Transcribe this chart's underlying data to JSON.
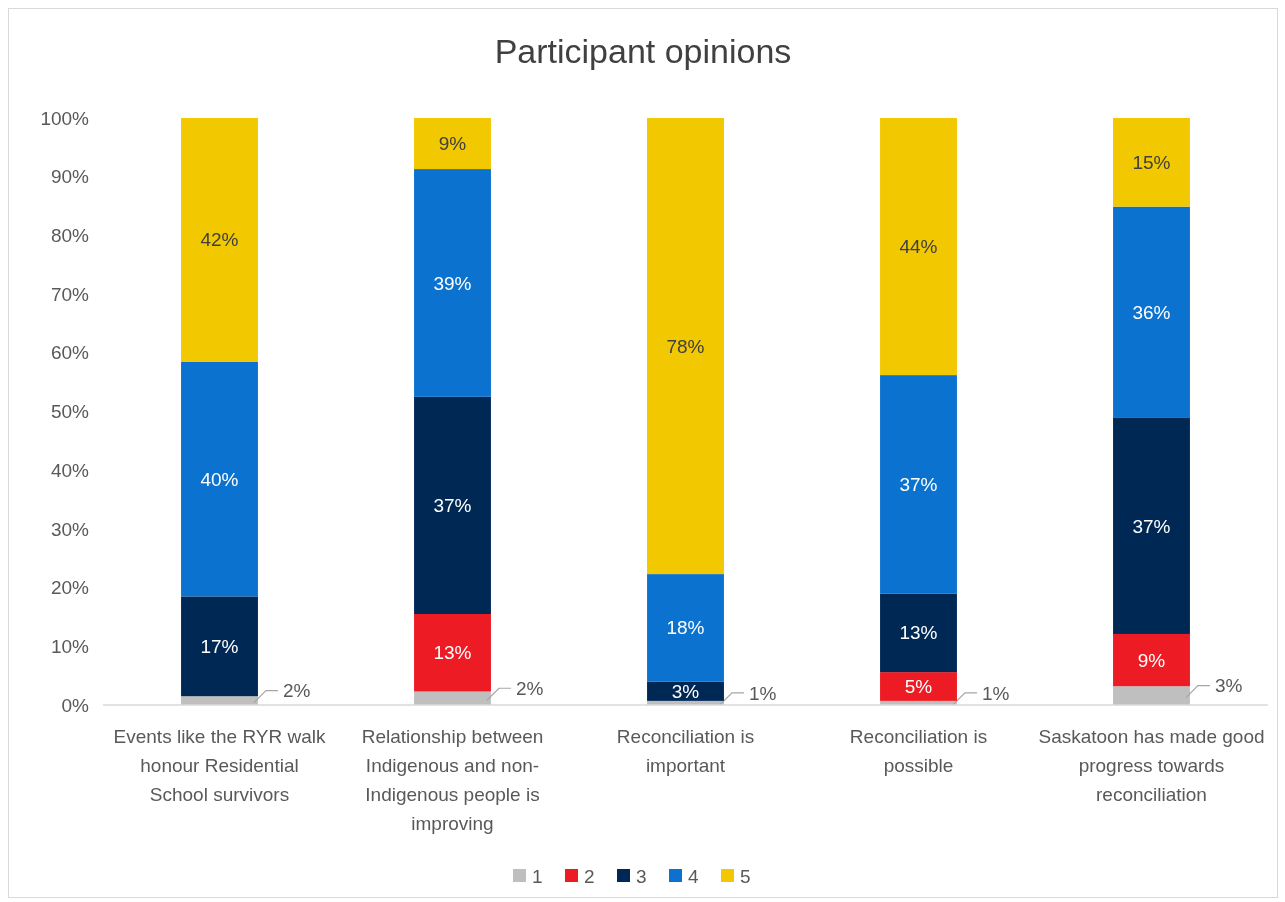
{
  "chart_data": {
    "type": "bar",
    "stacked": true,
    "title": "Participant opinions",
    "categories": [
      "Events like the RYR walk honour Residential School survivors",
      "Relationship between Indigenous and non-Indigenous people is improving",
      "Reconciliation is important",
      "Reconciliation is possible",
      "Saskatoon has made good progress towards reconciliation"
    ],
    "series": [
      {
        "name": "1",
        "color": "#bfbfbf",
        "values": [
          1.5,
          2.3,
          0.7,
          0.7,
          3.2
        ],
        "value_labels": [
          "2%",
          "2%",
          "1%",
          "1%",
          "3%"
        ]
      },
      {
        "name": "2",
        "color": "#ed1c24",
        "values": [
          null,
          13.2,
          null,
          4.9,
          8.9
        ],
        "value_labels": [
          null,
          "13%",
          null,
          "5%",
          "9%"
        ]
      },
      {
        "name": "3",
        "color": "#002855",
        "values": [
          17,
          37,
          3.3,
          13.4,
          36.8
        ],
        "value_labels": [
          "17%",
          "37%",
          "3%",
          "13%",
          "37%"
        ]
      },
      {
        "name": "4",
        "color": "#0b72cf",
        "values": [
          40,
          38.8,
          18.3,
          37.2,
          36
        ],
        "value_labels": [
          "40%",
          "39%",
          "18%",
          "37%",
          "36%"
        ]
      },
      {
        "name": "5",
        "color": "#f2c800",
        "values": [
          41.5,
          8.7,
          77.7,
          43.8,
          15.1
        ],
        "value_labels": [
          "42%",
          "9%",
          "78%",
          "44%",
          "15%"
        ]
      }
    ],
    "ylim": [
      0,
      100
    ],
    "yticks": [
      {
        "value": 0,
        "label": "0%"
      },
      {
        "value": 10,
        "label": "10%"
      },
      {
        "value": 20,
        "label": "20%"
      },
      {
        "value": 30,
        "label": "30%"
      },
      {
        "value": 40,
        "label": "40%"
      },
      {
        "value": 50,
        "label": "50%"
      },
      {
        "value": 60,
        "label": "60%"
      },
      {
        "value": 70,
        "label": "70%"
      },
      {
        "value": 80,
        "label": "80%"
      },
      {
        "value": 90,
        "label": "90%"
      },
      {
        "value": 100,
        "label": "100%"
      }
    ],
    "legend": "bottom"
  }
}
